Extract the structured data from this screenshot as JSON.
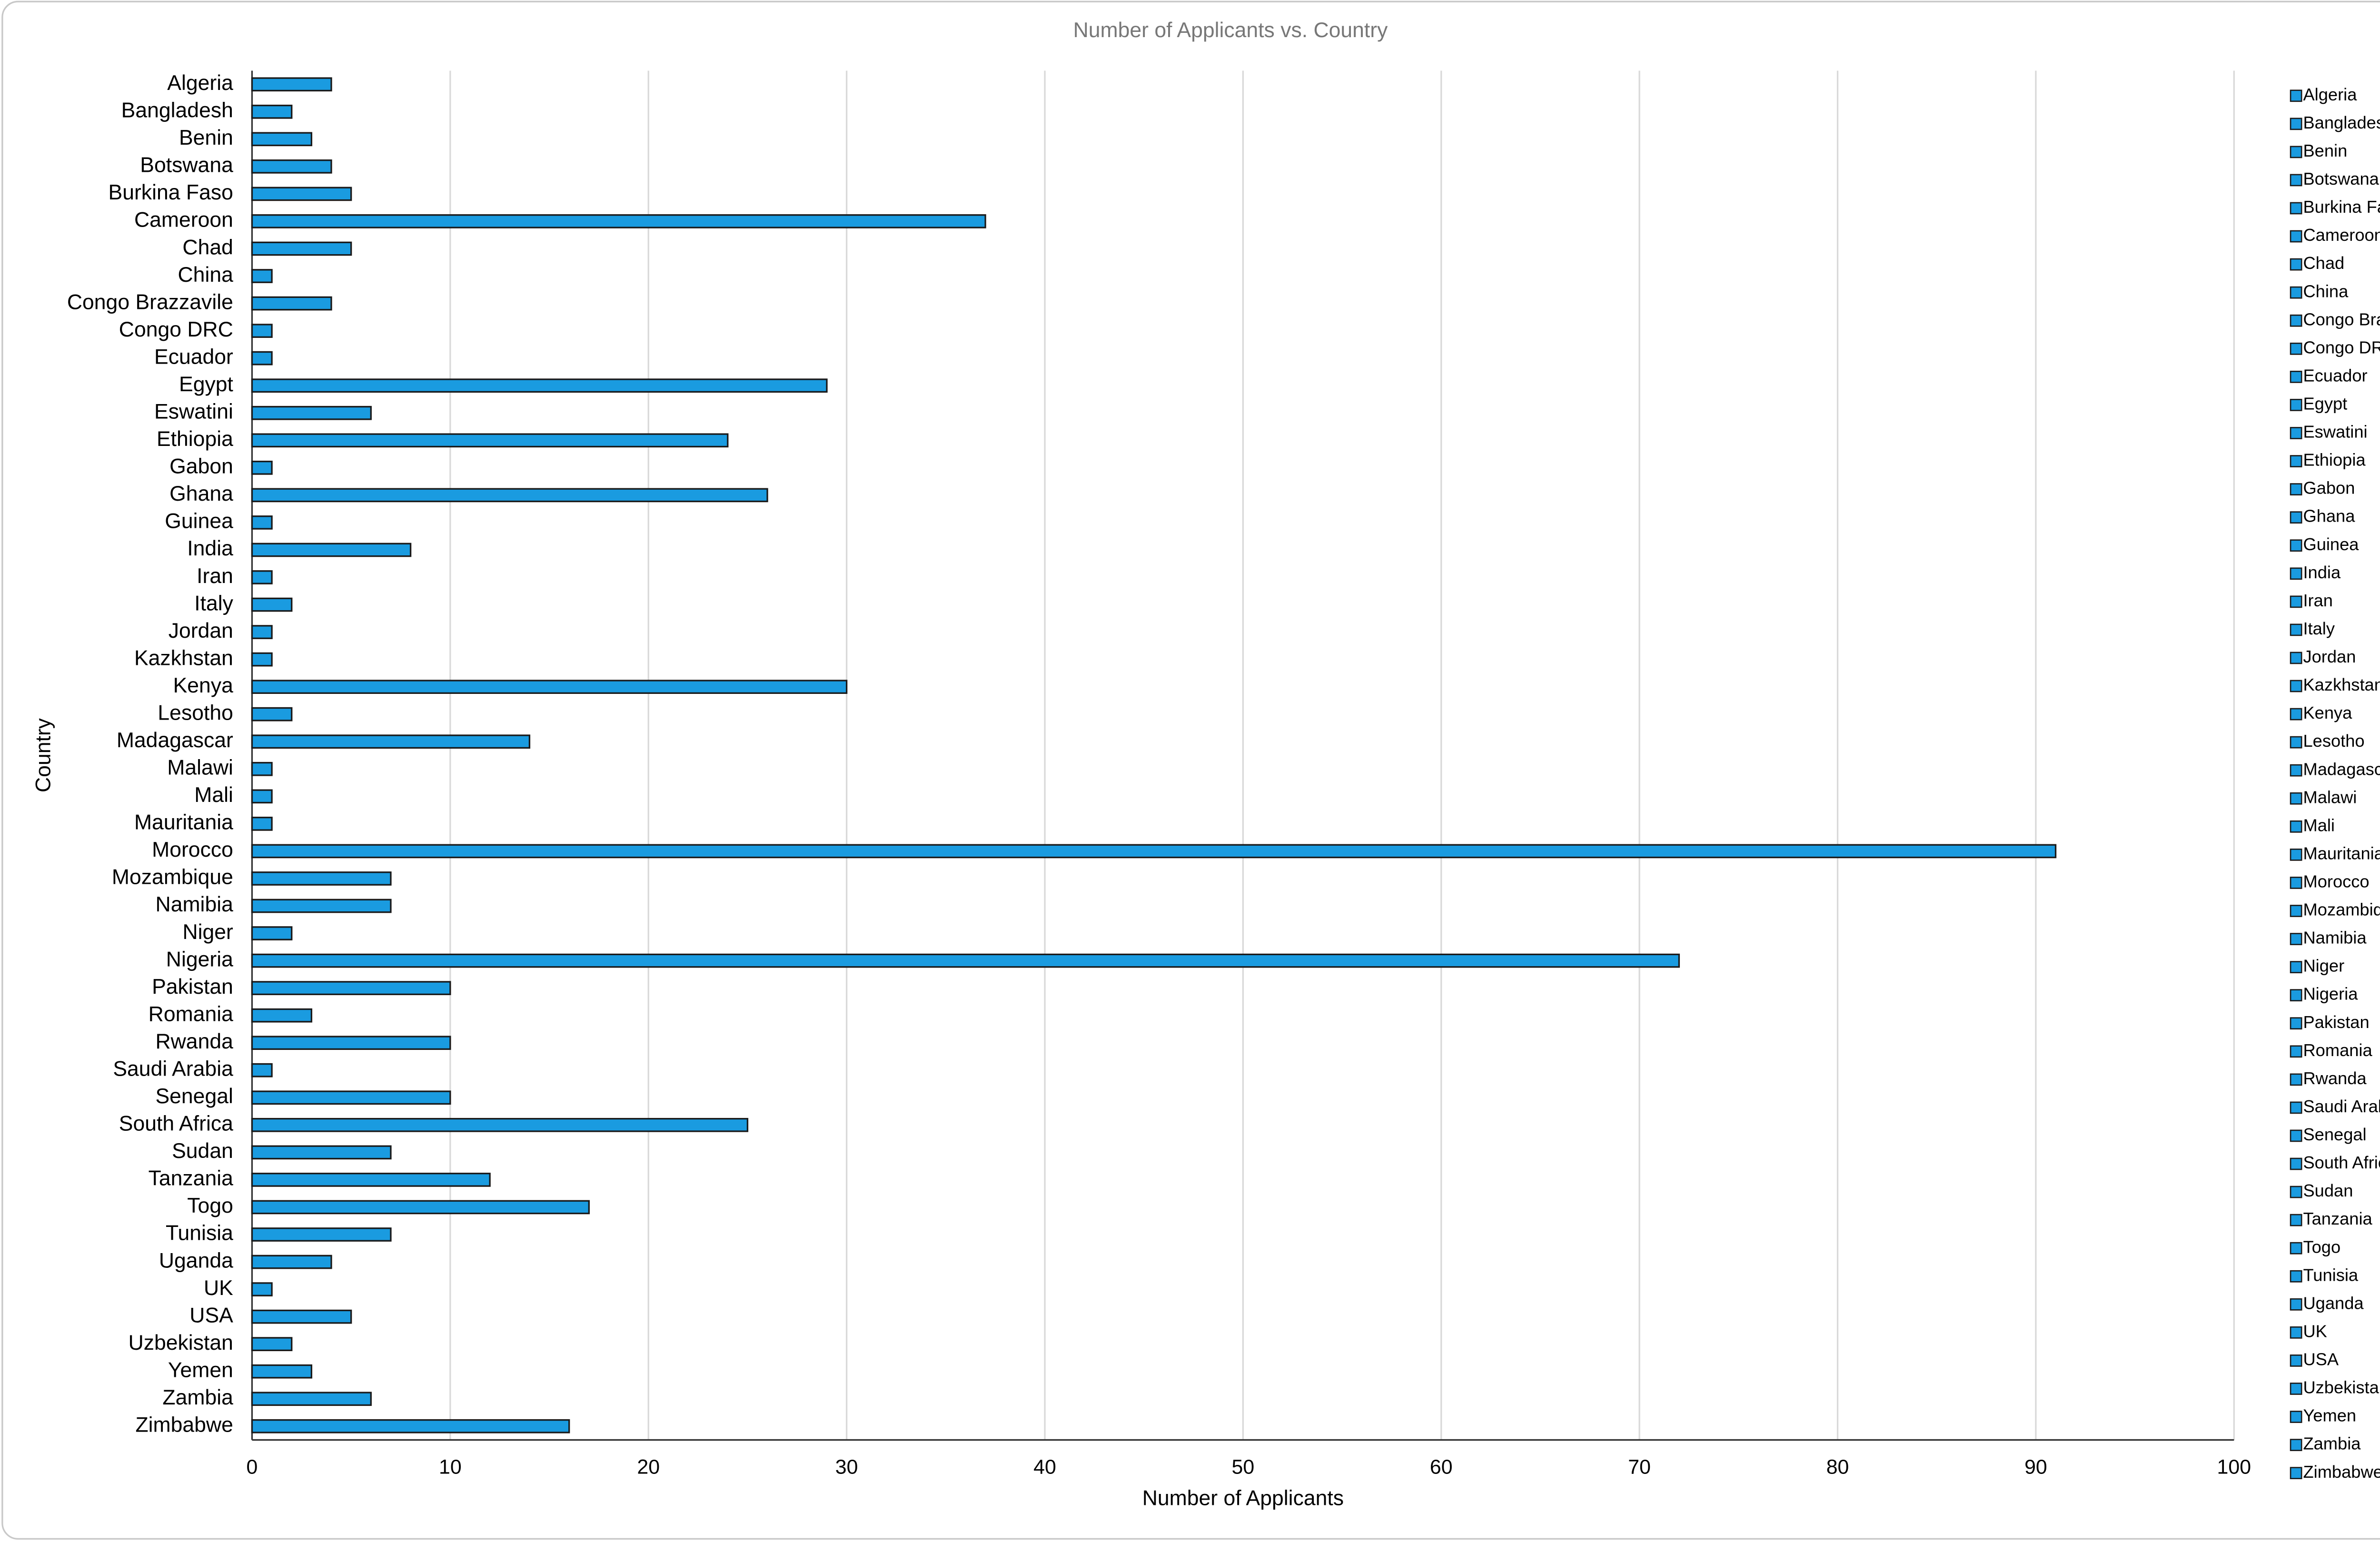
{
  "chart_data": {
    "type": "bar",
    "orientation": "horizontal",
    "title": "Number of Applicants vs. Country",
    "x_label": "Number of Applicants",
    "y_label": "Country",
    "categories": [
      "Algeria",
      "Bangladesh",
      "Benin",
      "Botswana",
      "Burkina Faso",
      "Cameroon",
      "Chad",
      "China",
      "Congo Brazzavile",
      "Congo DRC",
      "Ecuador",
      "Egypt",
      "Eswatini",
      "Ethiopia",
      "Gabon",
      "Ghana",
      "Guinea",
      "India",
      "Iran",
      "Italy",
      "Jordan",
      "Kazkhstan",
      "Kenya",
      "Lesotho",
      "Madagascar",
      "Malawi",
      "Mali",
      "Mauritania",
      "Morocco",
      "Mozambique",
      "Namibia",
      "Niger",
      "Nigeria",
      "Pakistan",
      "Romania",
      "Rwanda",
      "Saudi Arabia",
      "Senegal",
      "South Africa",
      "Sudan",
      "Tanzania",
      "Togo",
      "Tunisia",
      "Uganda",
      "UK",
      "USA",
      "Uzbekistan",
      "Yemen",
      "Zambia",
      "Zimbabwe"
    ],
    "values": [
      4,
      2,
      3,
      4,
      5,
      37,
      5,
      1,
      4,
      1,
      1,
      29,
      6,
      24,
      1,
      26,
      1,
      8,
      1,
      2,
      1,
      1,
      30,
      2,
      14,
      1,
      1,
      1,
      91,
      7,
      7,
      2,
      72,
      10,
      3,
      10,
      1,
      10,
      25,
      7,
      12,
      17,
      7,
      4,
      1,
      5,
      2,
      3,
      6,
      16
    ],
    "color": "#1a9be0",
    "xlim": [
      0,
      100
    ],
    "xticks": [
      0,
      10,
      20,
      30,
      40,
      50,
      60,
      70,
      80,
      90,
      100
    ],
    "grid": true,
    "legend": "right"
  }
}
